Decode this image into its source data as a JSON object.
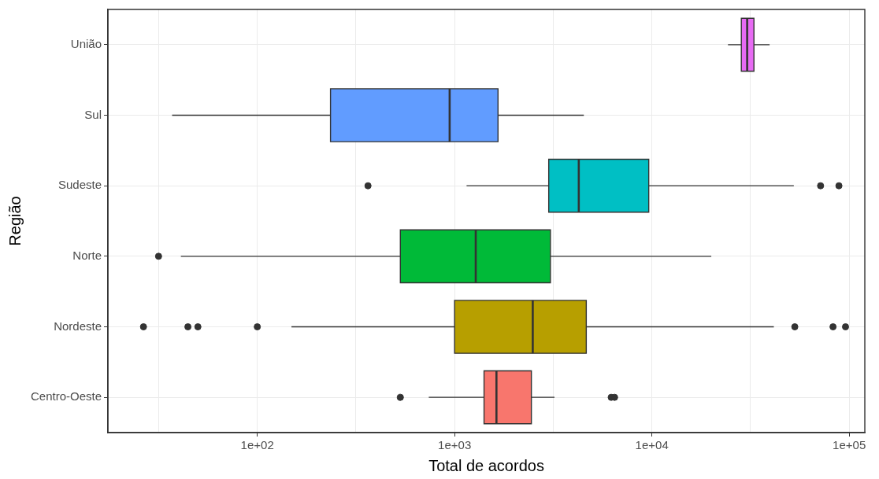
{
  "chart_data": {
    "type": "box",
    "orientation": "horizontal",
    "xlabel": "Total de acordos",
    "ylabel": "Região",
    "categories": [
      "União",
      "Sul",
      "Sudeste",
      "Norte",
      "Nordeste",
      "Centro-Oeste"
    ],
    "colors": [
      "#e76bf3",
      "#619cff",
      "#00bfc4",
      "#00ba38",
      "#b79f00",
      "#f8766d"
    ],
    "boxes": [
      {
        "low": 24300,
        "q1": 28400,
        "median": 30400,
        "q3": 32900,
        "high": 39500
      },
      {
        "low": 37,
        "q1": 235,
        "median": 944,
        "q3": 1660,
        "high": 4520
      },
      {
        "low": 1150,
        "q1": 3000,
        "median": 4260,
        "q3": 9640,
        "high": 52400,
        "outliers": [
          364,
          71600,
          88700
        ]
      },
      {
        "low": 41,
        "q1": 531,
        "median": 1280,
        "q3": 3060,
        "high": 20000,
        "outliers": [
          31.6
        ]
      },
      {
        "low": 149,
        "q1": 1000,
        "median": 2490,
        "q3": 4650,
        "high": 41500,
        "outliers": [
          26.5,
          44.5,
          50,
          100,
          53000,
          82800,
          95800
        ]
      },
      {
        "low": 740,
        "q1": 1410,
        "median": 1630,
        "q3": 2450,
        "high": 3210,
        "outliers": [
          531,
          6220,
          6470
        ]
      }
    ],
    "log": "x",
    "xlim": [
      17.5,
      120000
    ],
    "xticks": [
      {
        "value": 31.6,
        "label": null
      },
      {
        "value": 100,
        "label": "1e+02"
      },
      {
        "value": 316,
        "label": null
      },
      {
        "value": 1000,
        "label": "1e+03"
      },
      {
        "value": 3160,
        "label": null
      },
      {
        "value": 10000,
        "label": "1e+04"
      },
      {
        "value": 31600,
        "label": null
      },
      {
        "value": 100000,
        "label": "1e+05"
      }
    ],
    "grid": true,
    "legend": false
  }
}
